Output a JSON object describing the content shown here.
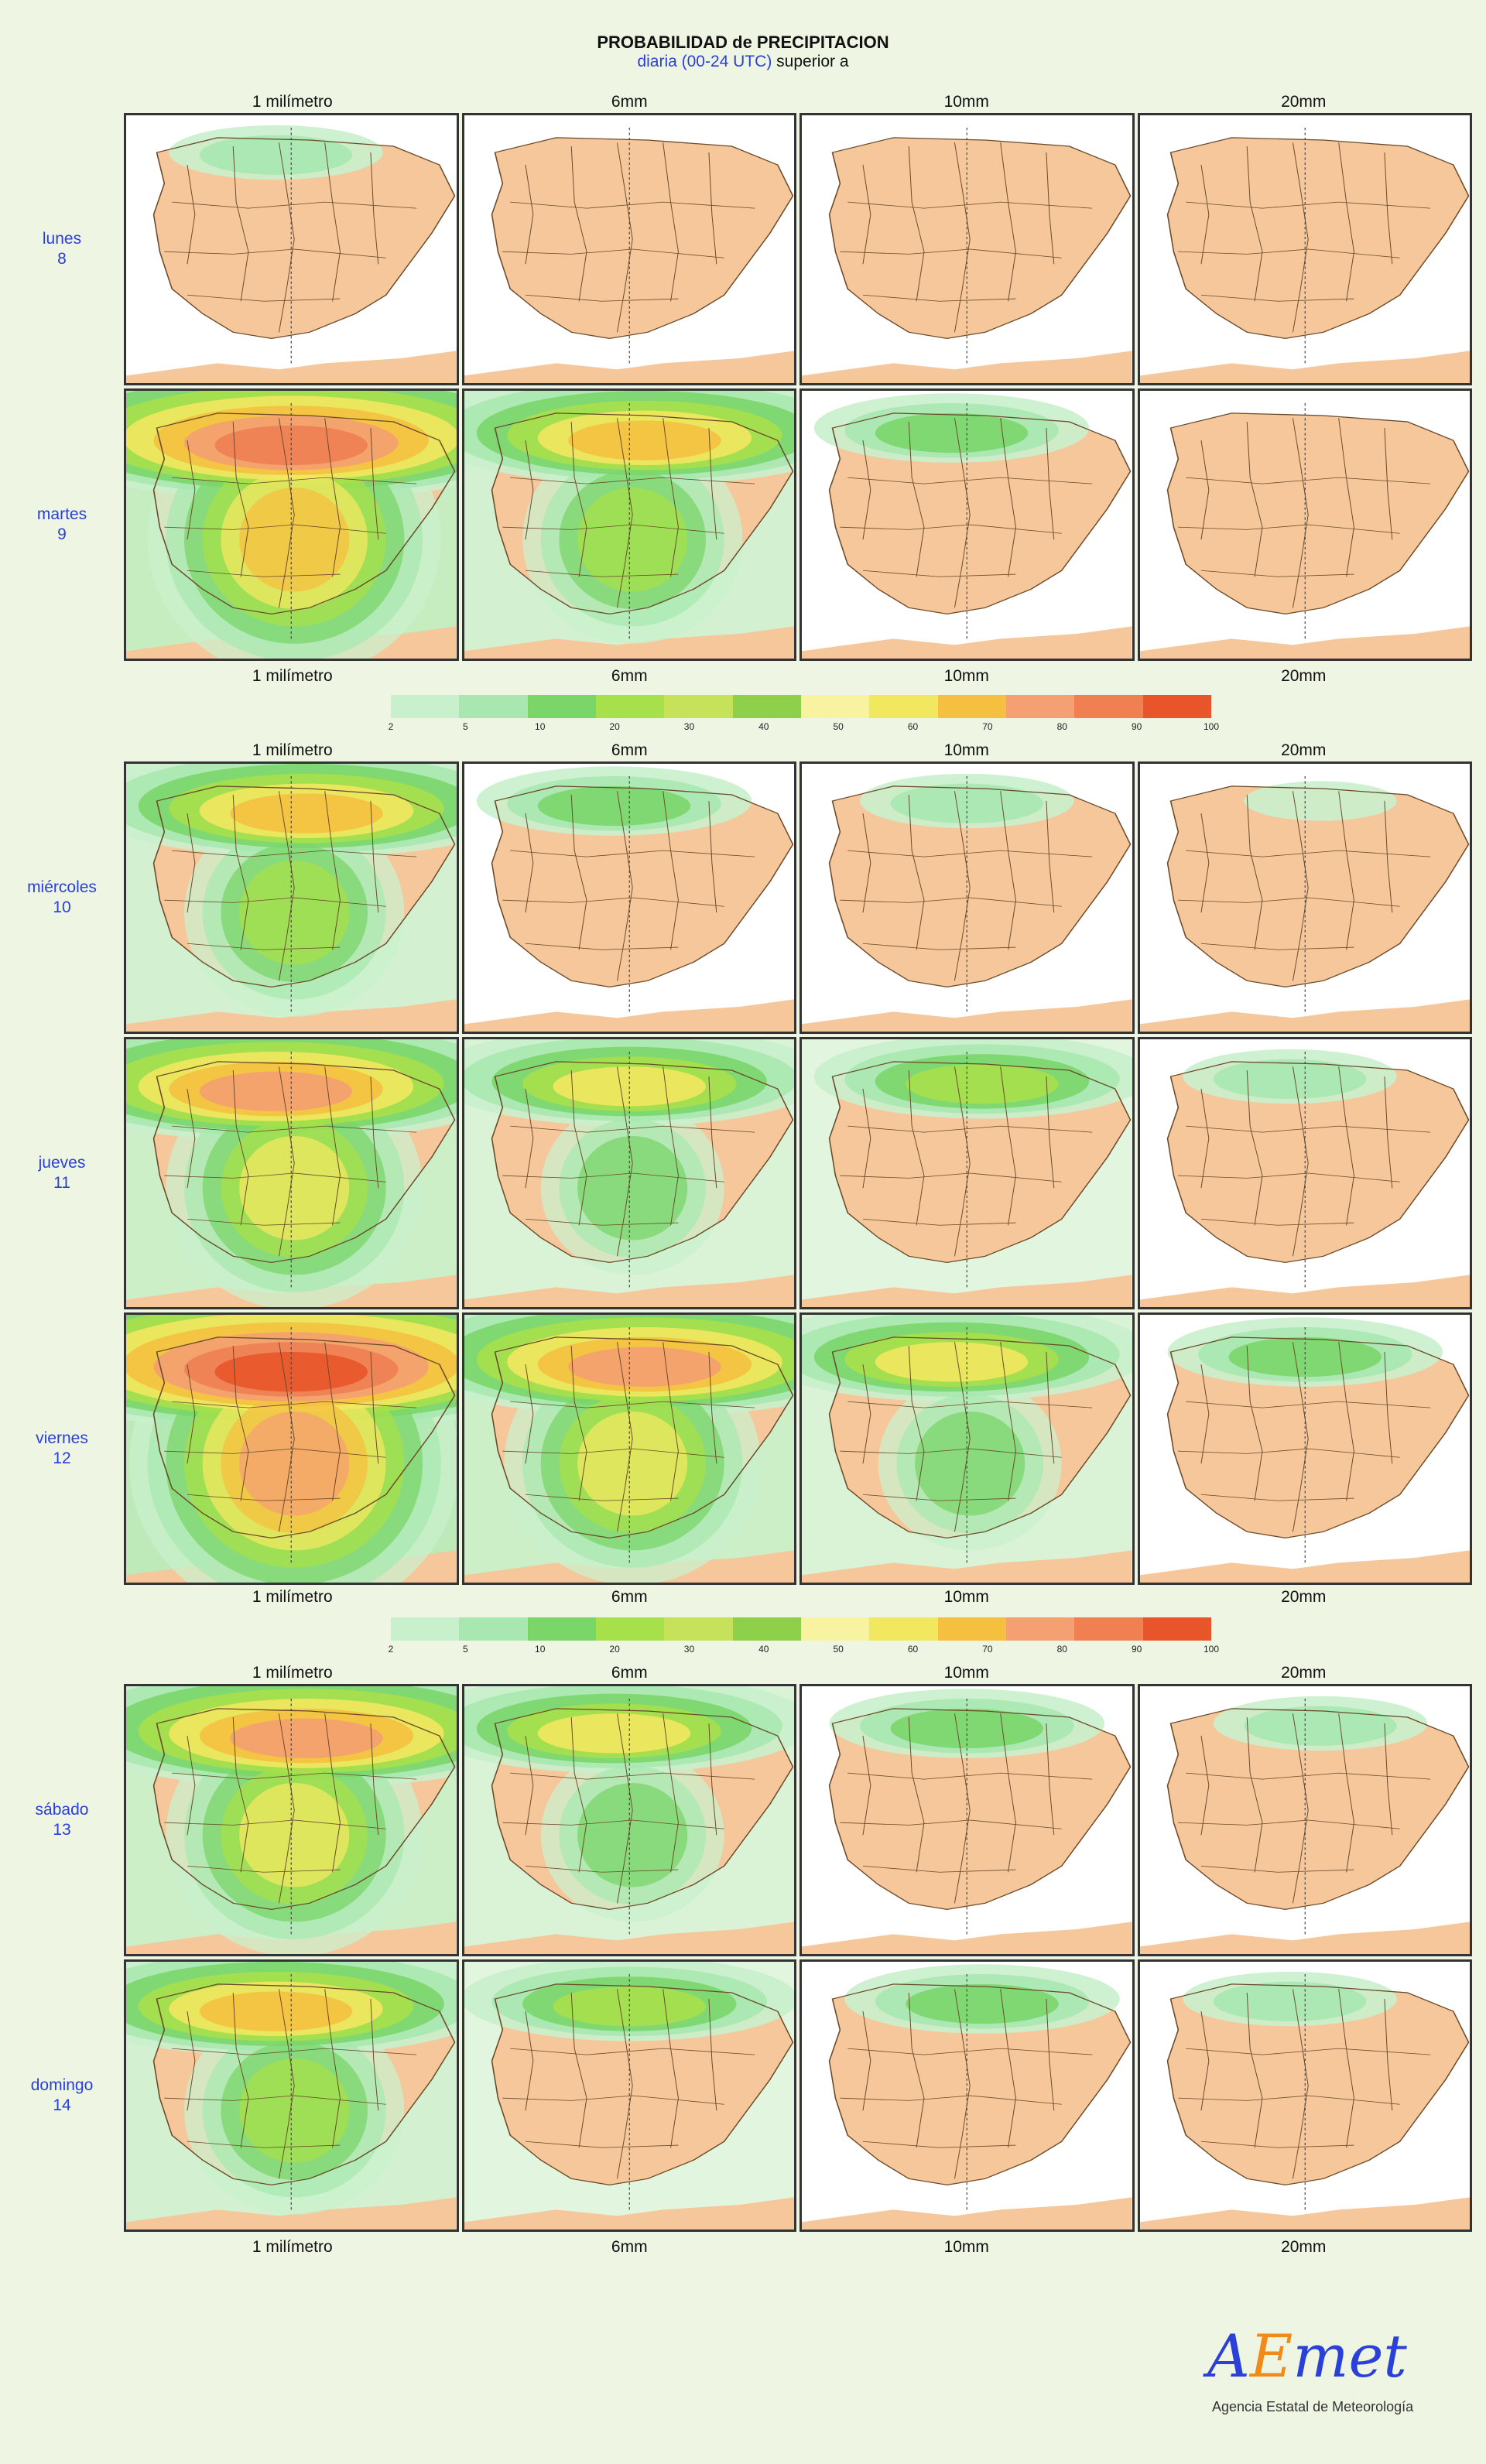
{
  "title": "PROBABILIDAD de PRECIPITACION",
  "subtitle_blue": "diaria (00-24 UTC)",
  "subtitle_rest": " superior a",
  "thresholds": [
    "1 milímetro",
    "6mm",
    "10mm",
    "20mm"
  ],
  "days": [
    {
      "name": "lunes",
      "num": "8"
    },
    {
      "name": "martes",
      "num": "9"
    },
    {
      "name": "miércoles",
      "num": "10"
    },
    {
      "name": "jueves",
      "num": "11"
    },
    {
      "name": "viernes",
      "num": "12"
    },
    {
      "name": "sábado",
      "num": "13"
    },
    {
      "name": "domingo",
      "num": "14"
    }
  ],
  "legend_ticks": [
    "2",
    "5",
    "10",
    "20",
    "30",
    "40",
    "50",
    "60",
    "70",
    "80",
    "90",
    "100"
  ],
  "legend_colors": [
    "#c9f0cc",
    "#a8e8b0",
    "#7bd66a",
    "#a6e04a",
    "#c6e25a",
    "#8fd04a",
    "#f7f3a0",
    "#f2e860",
    "#f5c040",
    "#f4a072",
    "#f07f52",
    "#e8552a"
  ],
  "logo": {
    "brand_a": "A",
    "brand_e": "E",
    "brand_rest": "met",
    "subtitle": "Agencia Estatal de Meteorología"
  },
  "intensity": [
    [
      2,
      0,
      0,
      0
    ],
    [
      8,
      6,
      3,
      0
    ],
    [
      6,
      3,
      2,
      1
    ],
    [
      7,
      5,
      4,
      2
    ],
    [
      9,
      7,
      5,
      3
    ],
    [
      7,
      5,
      3,
      2
    ],
    [
      6,
      4,
      3,
      2
    ]
  ]
}
